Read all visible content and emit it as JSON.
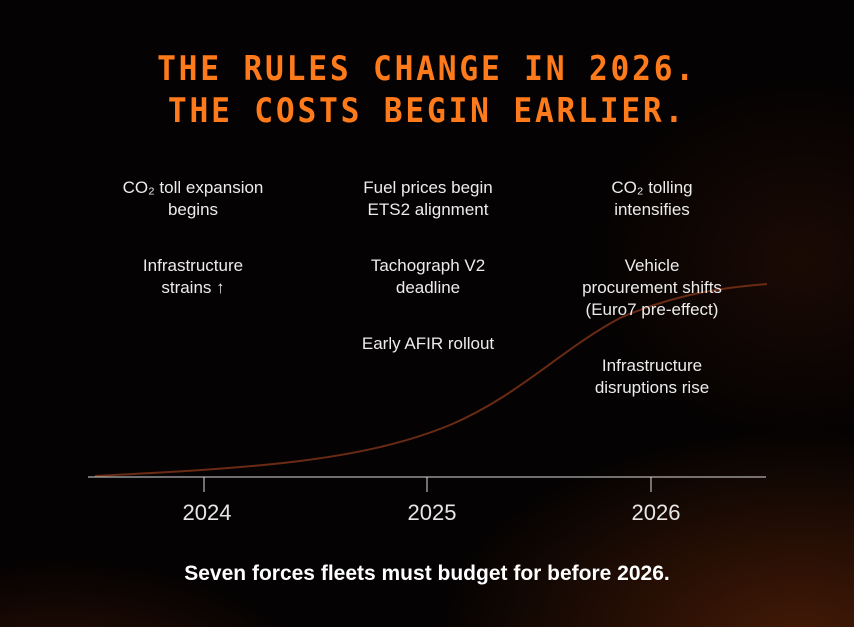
{
  "title": {
    "line1": "THE RULES CHANGE IN 2026.",
    "line2": "THE COSTS BEGIN EARLIER."
  },
  "timeline": {
    "col2024": {
      "toll_a": "CO₂ toll expansion",
      "toll_b": "begins",
      "infra_a": "Infrastructure",
      "infra_b": "strains ↑"
    },
    "col2025": {
      "fuel_a": "Fuel prices begin",
      "fuel_b": "ETS2 alignment",
      "tacho_a": "Tachograph V2",
      "tacho_b": "deadline",
      "afir": "Early AFIR rollout"
    },
    "col2026": {
      "co2_a": "CO₂ tolling",
      "co2_b": "intensifies",
      "veh_a": "Vehicle",
      "veh_b": "procurement shifts",
      "veh_c": "(Euro7 pre-effect)",
      "dis_a": "Infrastructure",
      "dis_b": "disruptions rise"
    },
    "years": [
      "2024",
      "2025",
      "2026"
    ]
  },
  "footer": "Seven forces fleets must budget for before 2026.",
  "colors": {
    "title": "#ff7a1a",
    "curve": "#6a2a14",
    "axis": "#dcdcdc"
  }
}
